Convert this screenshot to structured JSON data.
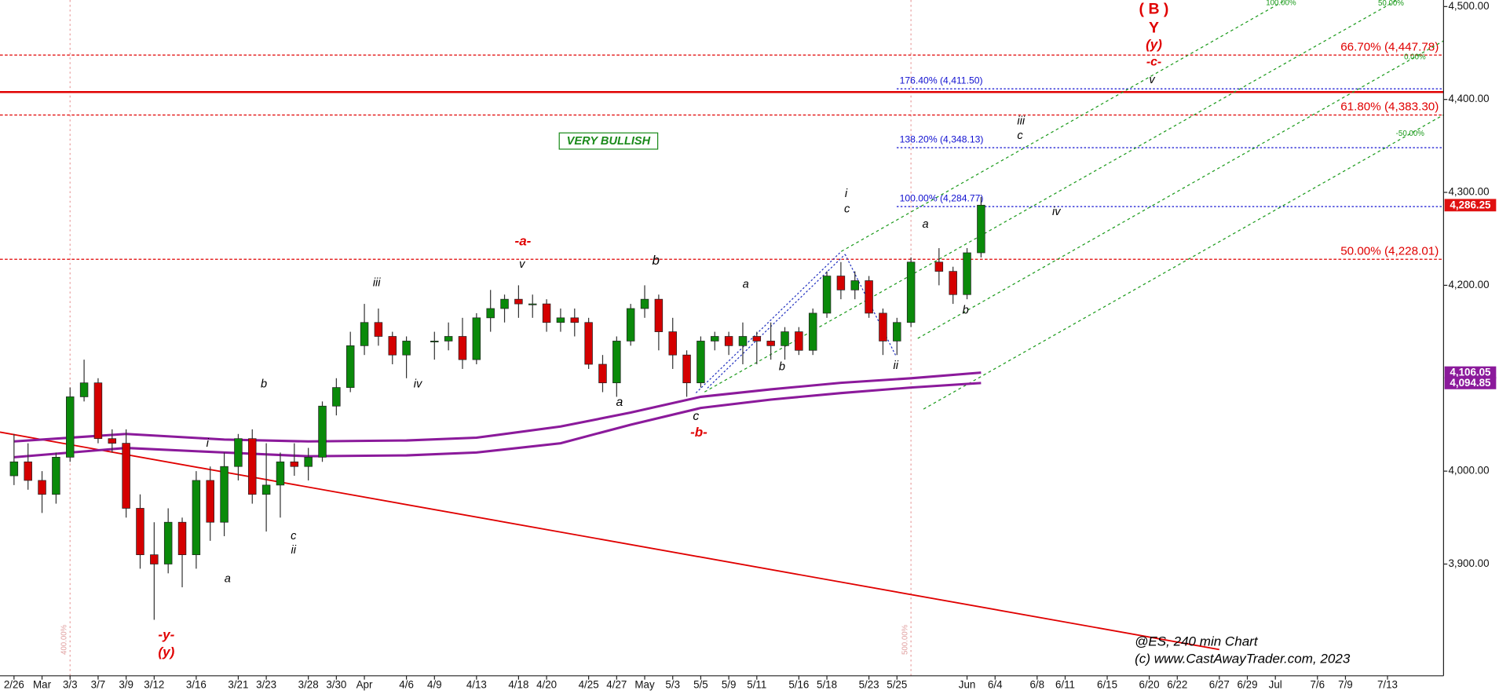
{
  "chart_data": {
    "type": "candlestick",
    "x": [
      "2/27",
      "2/28",
      "3/1",
      "3/2",
      "3/3",
      "3/6",
      "3/7",
      "3/8",
      "3/9",
      "3/10",
      "3/13",
      "3/14",
      "3/15",
      "3/16",
      "3/17",
      "3/20",
      "3/21",
      "3/22",
      "3/23",
      "3/24",
      "3/27",
      "3/28",
      "3/29",
      "3/30",
      "3/31",
      "4/3",
      "4/4",
      "4/5",
      "4/6",
      "4/10",
      "4/11",
      "4/12",
      "4/13",
      "4/14",
      "4/17",
      "4/18",
      "4/19",
      "4/20",
      "4/21",
      "4/24",
      "4/25",
      "4/26",
      "4/27",
      "4/28",
      "5/1",
      "5/2",
      "5/3",
      "5/4",
      "5/5",
      "5/8",
      "5/9",
      "5/10",
      "5/11",
      "5/12",
      "5/15",
      "5/16",
      "5/17",
      "5/18",
      "5/19",
      "5/22",
      "5/23",
      "5/24",
      "5/25",
      "5/26",
      "5/30",
      "5/31",
      "6/1",
      "6/2"
    ],
    "open": [
      3995,
      4010,
      3990,
      3975,
      4015,
      4080,
      4095,
      4035,
      4030,
      3960,
      3910,
      3900,
      3945,
      3910,
      3990,
      3945,
      4005,
      4035,
      3975,
      3985,
      4010,
      4005,
      4015,
      4070,
      4090,
      4135,
      4160,
      4145,
      4125,
      4140,
      4140,
      4145,
      4120,
      4165,
      4175,
      4185,
      4180,
      4180,
      4160,
      4165,
      4160,
      4115,
      4095,
      4140,
      4175,
      4185,
      4150,
      4125,
      4095,
      4140,
      4145,
      4135,
      4145,
      4140,
      4135,
      4150,
      4130,
      4170,
      4210,
      4195,
      4205,
      4170,
      4140,
      4160,
      4225,
      4215,
      4190,
      4235
    ],
    "high": [
      4040,
      4030,
      4000,
      4020,
      4090,
      4120,
      4100,
      4045,
      4045,
      3975,
      3945,
      3960,
      3950,
      4000,
      4005,
      4020,
      4040,
      4045,
      4030,
      4020,
      4030,
      4025,
      4075,
      4100,
      4150,
      4180,
      4175,
      4150,
      4145,
      4150,
      4160,
      4165,
      4170,
      4195,
      4190,
      4200,
      4190,
      4185,
      4175,
      4175,
      4165,
      4125,
      4145,
      4180,
      4200,
      4190,
      4165,
      4130,
      4145,
      4150,
      4150,
      4160,
      4150,
      4160,
      4155,
      4155,
      4175,
      4215,
      4225,
      4215,
      4210,
      4175,
      4165,
      4230,
      4240,
      4220,
      4240,
      4295
    ],
    "low": [
      3985,
      3980,
      3955,
      3965,
      4010,
      4075,
      4030,
      4020,
      3950,
      3895,
      3840,
      3890,
      3875,
      3895,
      3925,
      3930,
      3990,
      3965,
      3935,
      3950,
      3995,
      3990,
      4010,
      4060,
      4085,
      4125,
      4135,
      4115,
      4100,
      4120,
      4130,
      4110,
      4115,
      4150,
      4160,
      4165,
      4165,
      4150,
      4150,
      4145,
      4110,
      4085,
      4080,
      4135,
      4165,
      4130,
      4110,
      4080,
      4090,
      4130,
      4125,
      4115,
      4115,
      4120,
      4120,
      4125,
      4125,
      4165,
      4185,
      4185,
      4165,
      4125,
      4125,
      4155,
      4200,
      4180,
      4185,
      4230
    ],
    "close": [
      4010,
      3990,
      3975,
      4015,
      4080,
      4095,
      4035,
      4030,
      3960,
      3910,
      3900,
      3945,
      3910,
      3990,
      3945,
      4005,
      4035,
      3975,
      3985,
      4010,
      4005,
      4015,
      4070,
      4090,
      4135,
      4160,
      4145,
      4125,
      4140,
      4140,
      4145,
      4120,
      4165,
      4175,
      4185,
      4180,
      4180,
      4160,
      4165,
      4160,
      4115,
      4095,
      4140,
      4175,
      4185,
      4150,
      4125,
      4095,
      4140,
      4145,
      4135,
      4145,
      4140,
      4135,
      4150,
      4130,
      4170,
      4210,
      4195,
      4205,
      4170,
      4140,
      4160,
      4225,
      4215,
      4190,
      4235,
      4286.25
    ],
    "up_color": "#0a8a0a",
    "down_color": "#d40000",
    "last_price_label": "4,286.25",
    "moving_averages": [
      {
        "color": "#8b1a9b",
        "x": [
          "2/27",
          "3/9",
          "3/20",
          "3/28",
          "4/6",
          "4/13",
          "4/21",
          "4/28",
          "5/5",
          "5/12",
          "5/19",
          "5/26",
          "6/2"
        ],
        "values": [
          4032,
          4040,
          4034,
          4032,
          4033,
          4036,
          4048,
          4063,
          4080,
          4088,
          4095,
          4100,
          4106.05
        ],
        "end_label": "4,106.05"
      },
      {
        "color": "#8b1a9b",
        "x": [
          "2/27",
          "3/9",
          "3/20",
          "3/28",
          "4/6",
          "4/13",
          "4/21",
          "4/28",
          "5/5",
          "5/12",
          "5/19",
          "5/26",
          "6/2"
        ],
        "values": [
          4015,
          4025,
          4020,
          4016,
          4017,
          4020,
          4030,
          4050,
          4068,
          4077,
          4084,
          4090,
          4094.85
        ],
        "end_label": "4,094.85"
      }
    ],
    "levels": [
      {
        "value": 4447.78,
        "label": "66.70% (4,447.78)",
        "color": "#e00000"
      },
      {
        "value": 4411.5,
        "label": "176.40% (4,411.50)",
        "color": "#1010d0"
      },
      {
        "value": 4408,
        "color": "#e00000",
        "line": "solid"
      },
      {
        "value": 4383.3,
        "label": "61.80% (4,383.30)",
        "color": "#e00000"
      },
      {
        "value": 4348.13,
        "label": "138.20% (4,348.13)",
        "color": "#1010d0"
      },
      {
        "value": 4284.77,
        "label": "100.00% (4,284.77)",
        "color": "#1010d0"
      },
      {
        "value": 4228.01,
        "label": "50.00% (4,228.01)",
        "color": "#e00000"
      }
    ],
    "trendline": {
      "x": [
        "2/24",
        "6/27"
      ],
      "y": [
        4042,
        3808
      ],
      "color": "#e00000"
    },
    "time_fibs": [
      {
        "x": "3/3",
        "label": "400.00%"
      },
      {
        "x": "5/26",
        "label": "500.00%"
      }
    ],
    "channel_labels": [
      "100.00%",
      "50.00%",
      "0.00%",
      "-50.00%"
    ],
    "annotations": [
      {
        "text": "( B )",
        "color": "#e00000"
      },
      {
        "text": "Y",
        "color": "#e00000"
      },
      {
        "text": "(y)",
        "color": "#e00000"
      },
      {
        "text": "-c-",
        "color": "#e00000"
      },
      {
        "text": "v",
        "color": "#000"
      },
      {
        "text": "iii",
        "color": "#000"
      },
      {
        "text": "c",
        "color": "#000"
      },
      {
        "text": "iv",
        "color": "#000"
      },
      {
        "text": "i",
        "color": "#000"
      },
      {
        "text": "c",
        "color": "#000"
      },
      {
        "text": "a",
        "color": "#000"
      },
      {
        "text": "b",
        "color": "#000"
      },
      {
        "text": "ii",
        "color": "#000"
      },
      {
        "text": "-a-",
        "color": "#e00000"
      },
      {
        "text": "v",
        "color": "#000"
      },
      {
        "text": "b",
        "color": "#000"
      },
      {
        "text": "a",
        "color": "#000"
      },
      {
        "text": "b",
        "color": "#000"
      },
      {
        "text": "a",
        "color": "#000"
      },
      {
        "text": "c",
        "color": "#000"
      },
      {
        "text": "-b-",
        "color": "#e00000"
      },
      {
        "text": "iii",
        "color": "#000"
      },
      {
        "text": "iv",
        "color": "#000"
      },
      {
        "text": "b",
        "color": "#000"
      },
      {
        "text": "i",
        "color": "#000"
      },
      {
        "text": "c",
        "color": "#000"
      },
      {
        "text": "ii",
        "color": "#000"
      },
      {
        "text": "a",
        "color": "#000"
      },
      {
        "text": "-y-",
        "color": "#e00000"
      },
      {
        "text": "(y)",
        "color": "#e00000"
      }
    ],
    "callout": "VERY BULLISH",
    "chart_label": "@ES, 240 min Chart",
    "copyright": "(c) www.CastAwayTrader.com, 2023",
    "xlim": [
      "2/24",
      "7/19"
    ],
    "xticks": [
      "2/26",
      {
        "value": "3/1",
        "label": "Mar"
      },
      "3/3",
      "3/7",
      "3/9",
      "3/12",
      "3/16",
      "3/21",
      "3/23",
      "3/28",
      "3/30",
      {
        "value": "4/3",
        "label": "Apr"
      },
      "4/6",
      "4/9",
      "4/13",
      "4/18",
      "4/20",
      "4/25",
      "4/27",
      {
        "value": "5/1",
        "label": "May"
      },
      "5/3",
      "5/5",
      "5/9",
      "5/11",
      "5/16",
      "5/18",
      "5/23",
      "5/25",
      {
        "value": "6/1",
        "label": "Jun"
      },
      "6/4",
      "6/8",
      "6/11",
      "6/15",
      "6/20",
      "6/22",
      "6/27",
      "6/29",
      {
        "value": "7/3",
        "label": "Jul"
      },
      "7/6",
      "7/9",
      "7/13"
    ],
    "ylim": [
      3789,
      4507
    ],
    "yticks": [
      {
        "value": 3900,
        "label": "3,900.00"
      },
      {
        "value": 4000,
        "label": "4,000.00"
      },
      {
        "value": 4200,
        "label": "4,200.00"
      },
      {
        "value": 4300,
        "label": "4,300.00"
      },
      {
        "value": 4400,
        "label": "4,400.00"
      },
      {
        "value": 4500,
        "label": "4,500.00"
      }
    ]
  }
}
